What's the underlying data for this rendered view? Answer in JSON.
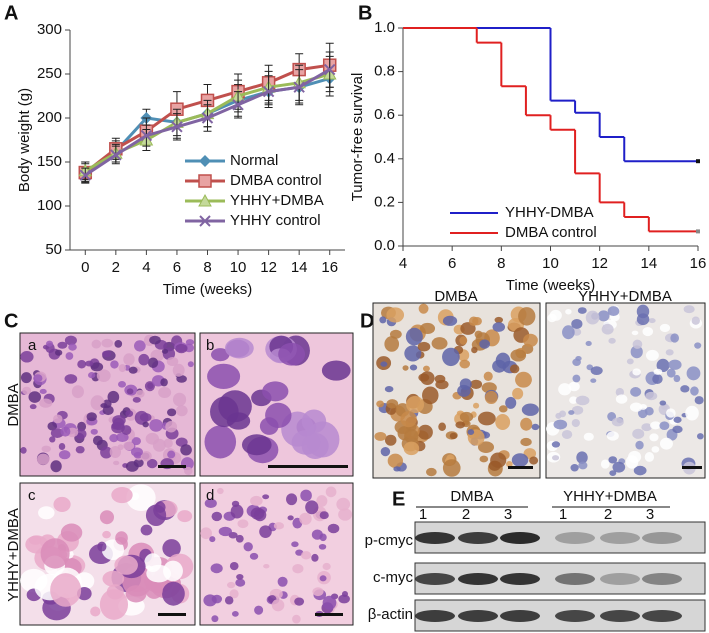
{
  "chart_data": [
    {
      "type": "line",
      "panel_label": "A",
      "xlabel": "Time (weeks)",
      "ylabel": "Body weight (g)",
      "x": [
        0,
        2,
        4,
        6,
        8,
        10,
        12,
        14,
        16
      ],
      "xlim": [
        -1,
        17
      ],
      "xticks": [
        0,
        2,
        4,
        6,
        8,
        10,
        12,
        14,
        16
      ],
      "ylim": [
        50,
        300
      ],
      "yticks": [
        50,
        100,
        150,
        200,
        250,
        300
      ],
      "grid": false,
      "legend": "lower right",
      "series": [
        {
          "name": "Normal",
          "color": "#4f8fb5",
          "marker": "diamond",
          "values": [
            138,
            162,
            200,
            195,
            205,
            220,
            230,
            235,
            245
          ],
          "errors": [
            12,
            12,
            10,
            18,
            15,
            18,
            15,
            18,
            20
          ]
        },
        {
          "name": "DMBA control",
          "color": "#c0504d",
          "marker": "square",
          "values": [
            138,
            165,
            185,
            210,
            220,
            230,
            240,
            255,
            260
          ],
          "errors": [
            10,
            12,
            15,
            20,
            18,
            20,
            20,
            18,
            25
          ]
        },
        {
          "name": "YHHY+DMBA",
          "color": "#9bbb59",
          "marker": "triangle",
          "values": [
            140,
            160,
            175,
            195,
            205,
            225,
            235,
            240,
            250
          ],
          "errors": [
            10,
            10,
            12,
            15,
            15,
            18,
            18,
            20,
            20
          ]
        },
        {
          "name": "YHHY control",
          "color": "#8064a2",
          "marker": "x",
          "values": [
            135,
            158,
            180,
            190,
            200,
            215,
            230,
            235,
            255
          ],
          "errors": [
            8,
            10,
            12,
            15,
            15,
            15,
            18,
            20,
            20
          ]
        }
      ]
    },
    {
      "type": "step",
      "panel_label": "B",
      "xlabel": "Time (weeks)",
      "ylabel": "Tumor-free  survival",
      "xlim": [
        4,
        16
      ],
      "xticks": [
        4,
        6,
        8,
        10,
        12,
        14,
        16
      ],
      "ylim": [
        0,
        1
      ],
      "yticks": [
        {
          "value": 0,
          "label": "0.0"
        },
        0.2,
        0.4,
        0.6,
        0.8,
        {
          "value": 1,
          "label": "1.0"
        }
      ],
      "legend": "lower left",
      "series": [
        {
          "name": "YHHY-DMBA",
          "color": "#1f1fc8",
          "x": [
            4,
            10,
            11,
            12,
            13,
            16
          ],
          "values": [
            1,
            0.667,
            0.611,
            0.5,
            0.389,
            0.389
          ]
        },
        {
          "name": "DMBA control",
          "color": "#e02020",
          "x": [
            4,
            7,
            8,
            9,
            10,
            11,
            12,
            13,
            14,
            16
          ],
          "values": [
            1,
            0.933,
            0.733,
            0.6,
            0.533,
            0.333,
            0.2,
            0.133,
            0.067,
            0.067
          ]
        }
      ]
    }
  ],
  "panel_c": {
    "label": "C",
    "rows": [
      "DMBA",
      "YHHY+DMBA"
    ],
    "images": [
      "a",
      "b",
      "c",
      "d"
    ]
  },
  "panel_d": {
    "label": "D",
    "images": [
      "DMBA",
      "YHHY+DMBA"
    ]
  },
  "panel_e": {
    "label": "E",
    "groups": [
      "DMBA",
      "YHHY+DMBA"
    ],
    "lanes": [
      "1",
      "2",
      "3",
      "1",
      "2",
      "3"
    ],
    "rows": [
      "p-cmyc",
      "c-myc",
      "β-actin"
    ]
  }
}
